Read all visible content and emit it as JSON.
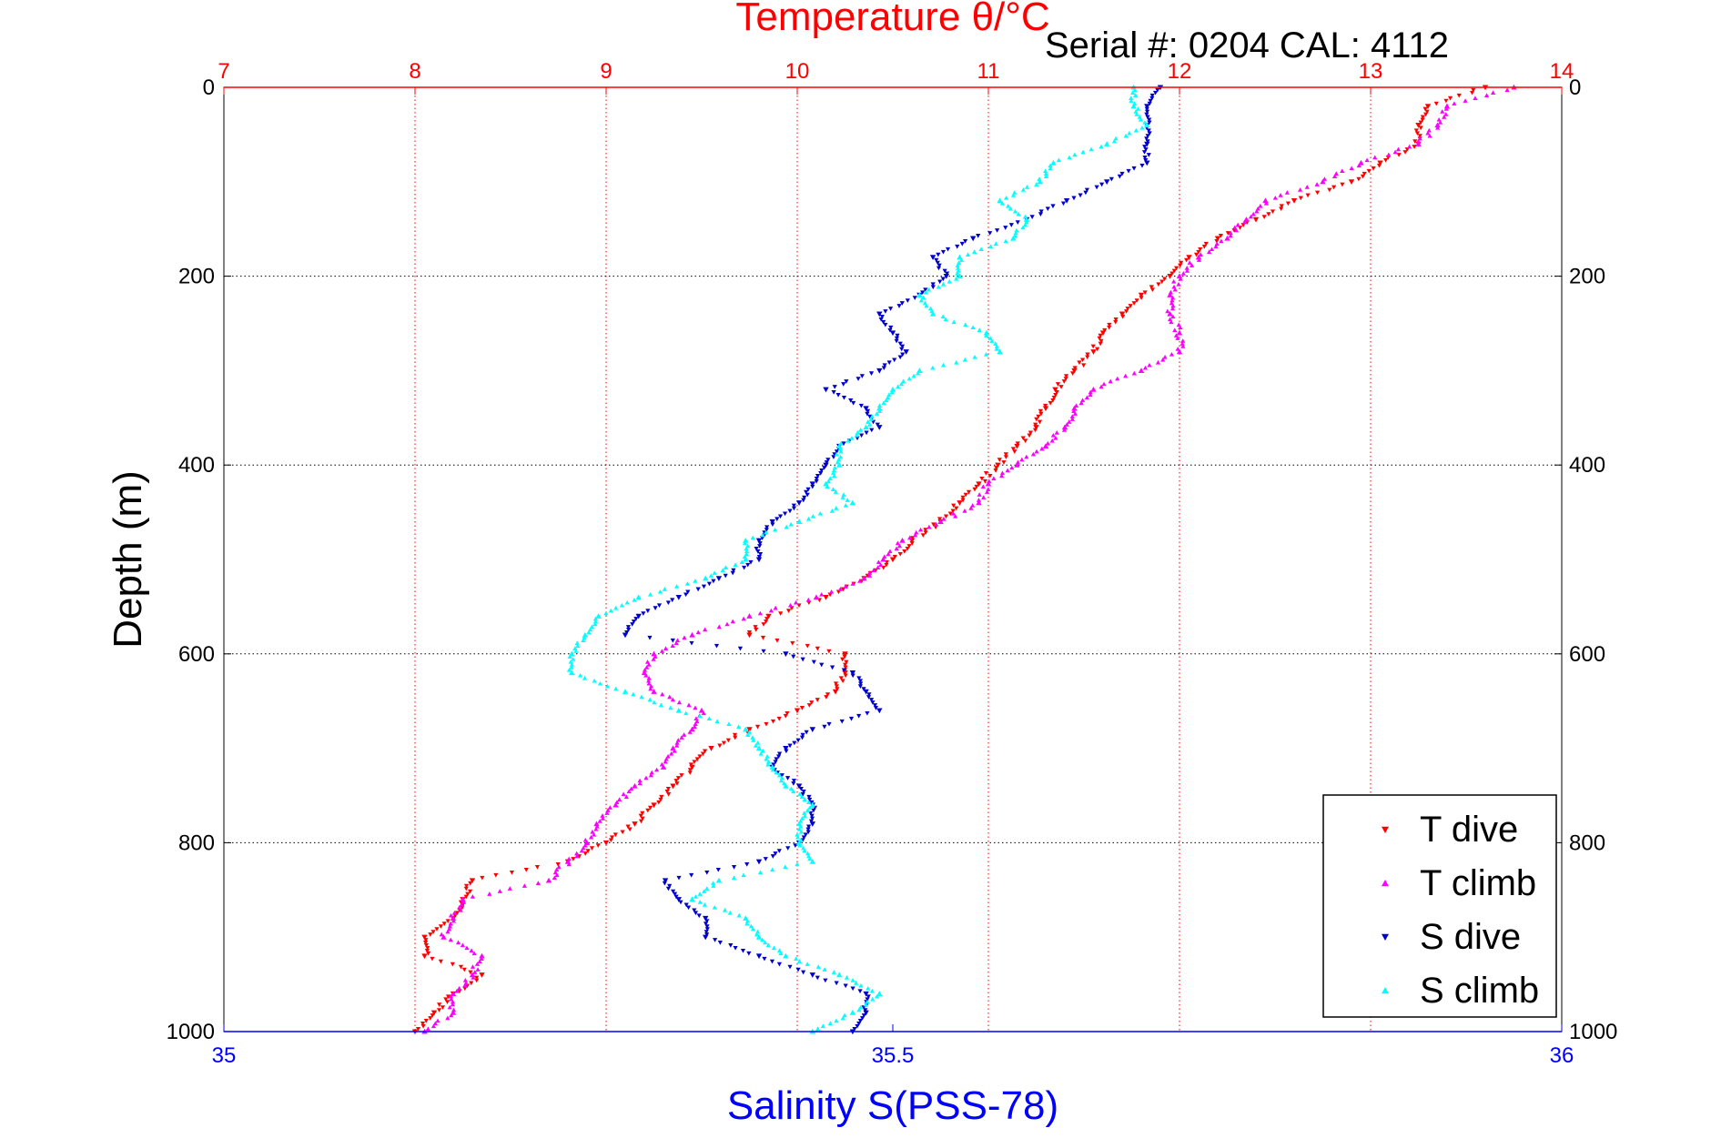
{
  "chart_data": {
    "type": "scatter",
    "title": "Temperature θ/°C",
    "subtitle": "Serial #: 0204  CAL: 4112",
    "xlabel": "Salinity S(PSS-78)",
    "ylabel": "Depth (m)",
    "top_axis": {
      "label": "Temperature θ/°C",
      "range": [
        7,
        14
      ],
      "ticks": [
        "7",
        "8",
        "9",
        "10",
        "11",
        "12",
        "13",
        "14"
      ]
    },
    "bottom_axis": {
      "label": "Salinity S(PSS-78)",
      "range": [
        35,
        36
      ],
      "ticks": [
        "35",
        "35.5",
        "36"
      ]
    },
    "y_axis": {
      "range": [
        0,
        1000
      ],
      "reversed": true,
      "ticks": [
        "0",
        "200",
        "400",
        "600",
        "800",
        "1000"
      ]
    },
    "grid": true,
    "legend": {
      "placement": "bottom-right"
    },
    "colors": {
      "temp_axis": "#ff0000",
      "sal_axis": "#0000ff",
      "grid": "#000000",
      "t_dive": "#ff0000",
      "t_climb": "#ff00ff",
      "s_dive": "#0000cc",
      "s_climb": "#00ffff"
    },
    "series": [
      {
        "name": "T dive",
        "axis": "temperature",
        "marker": "triangle-down",
        "color": "#ff0000",
        "depth": [
          0,
          20,
          40,
          60,
          80,
          100,
          120,
          140,
          160,
          180,
          200,
          220,
          240,
          260,
          280,
          300,
          320,
          340,
          360,
          380,
          400,
          420,
          440,
          460,
          480,
          500,
          520,
          540,
          560,
          580,
          600,
          620,
          640,
          660,
          680,
          700,
          720,
          740,
          760,
          780,
          800,
          820,
          840,
          860,
          880,
          900,
          920,
          940,
          960,
          980,
          1000
        ],
        "values": [
          13.6,
          13.3,
          13.25,
          13.25,
          13.05,
          12.9,
          12.6,
          12.4,
          12.2,
          12.05,
          11.95,
          11.8,
          11.7,
          11.6,
          11.55,
          11.45,
          11.35,
          11.3,
          11.25,
          11.15,
          11.05,
          10.95,
          10.85,
          10.75,
          10.6,
          10.5,
          10.35,
          10.15,
          9.85,
          9.75,
          10.25,
          10.25,
          10.2,
          10.0,
          9.75,
          9.55,
          9.45,
          9.35,
          9.25,
          9.15,
          9.0,
          8.8,
          8.3,
          8.25,
          8.2,
          8.05,
          8.05,
          8.35,
          8.2,
          8.1,
          8.0
        ]
      },
      {
        "name": "T climb",
        "axis": "temperature",
        "marker": "triangle-up",
        "color": "#ff00ff",
        "depth": [
          0,
          20,
          40,
          60,
          80,
          100,
          120,
          140,
          160,
          180,
          200,
          220,
          240,
          260,
          280,
          300,
          320,
          340,
          360,
          380,
          400,
          420,
          440,
          460,
          480,
          500,
          520,
          540,
          560,
          580,
          600,
          620,
          640,
          660,
          680,
          700,
          720,
          740,
          760,
          780,
          800,
          820,
          840,
          860,
          880,
          900,
          920,
          940,
          960,
          980,
          1000
        ],
        "values": [
          13.75,
          13.4,
          13.35,
          13.25,
          12.95,
          12.75,
          12.45,
          12.35,
          12.25,
          12.1,
          12.0,
          11.95,
          11.95,
          12.0,
          12.0,
          11.8,
          11.55,
          11.45,
          11.4,
          11.3,
          11.15,
          11.0,
          10.95,
          10.75,
          10.55,
          10.45,
          10.35,
          10.1,
          9.75,
          9.45,
          9.25,
          9.2,
          9.25,
          9.5,
          9.45,
          9.35,
          9.3,
          9.15,
          9.05,
          8.95,
          8.9,
          8.8,
          8.7,
          8.25,
          8.2,
          8.15,
          8.35,
          8.3,
          8.2,
          8.2,
          8.05
        ]
      },
      {
        "name": "S dive",
        "axis": "salinity",
        "marker": "triangle-down",
        "color": "#0000cc",
        "depth": [
          0,
          20,
          40,
          60,
          80,
          100,
          120,
          140,
          160,
          180,
          200,
          220,
          240,
          260,
          280,
          300,
          320,
          340,
          360,
          380,
          400,
          420,
          440,
          460,
          480,
          500,
          520,
          540,
          560,
          580,
          600,
          620,
          640,
          660,
          680,
          700,
          720,
          740,
          760,
          780,
          800,
          820,
          840,
          860,
          880,
          900,
          920,
          940,
          960,
          980,
          1000
        ],
        "values": [
          35.7,
          35.69,
          35.69,
          35.69,
          35.69,
          35.66,
          35.63,
          35.6,
          35.56,
          35.53,
          35.54,
          35.52,
          35.49,
          35.5,
          35.51,
          35.49,
          35.45,
          35.48,
          35.49,
          35.46,
          35.45,
          35.44,
          35.43,
          35.41,
          35.4,
          35.4,
          35.37,
          35.34,
          35.31,
          35.3,
          35.42,
          35.47,
          35.48,
          35.49,
          35.44,
          35.42,
          35.41,
          35.43,
          35.44,
          35.44,
          35.43,
          35.4,
          35.33,
          35.34,
          35.36,
          35.36,
          35.4,
          35.44,
          35.48,
          35.48,
          35.47
        ]
      },
      {
        "name": "S climb",
        "axis": "salinity",
        "marker": "triangle-up",
        "color": "#00ffff",
        "depth": [
          0,
          20,
          40,
          60,
          80,
          100,
          120,
          140,
          160,
          180,
          200,
          220,
          240,
          260,
          280,
          300,
          320,
          340,
          360,
          380,
          400,
          420,
          440,
          460,
          480,
          500,
          520,
          540,
          560,
          580,
          600,
          620,
          640,
          660,
          680,
          700,
          720,
          740,
          760,
          780,
          800,
          820,
          840,
          860,
          880,
          900,
          920,
          940,
          960,
          980,
          1000
        ],
        "values": [
          35.68,
          35.68,
          35.69,
          35.66,
          35.62,
          35.61,
          35.58,
          35.6,
          35.59,
          35.55,
          35.55,
          35.52,
          35.53,
          35.57,
          35.58,
          35.52,
          35.5,
          35.49,
          35.48,
          35.46,
          35.46,
          35.45,
          35.47,
          35.43,
          35.39,
          35.39,
          35.36,
          35.31,
          35.28,
          35.27,
          35.26,
          35.26,
          35.3,
          35.34,
          35.39,
          35.4,
          35.41,
          35.42,
          35.44,
          35.43,
          35.43,
          35.44,
          35.37,
          35.35,
          35.39,
          35.4,
          35.42,
          35.46,
          35.49,
          35.47,
          35.44
        ]
      }
    ]
  },
  "legend_items": [
    "T dive",
    "T climb",
    "S dive",
    "S climb"
  ]
}
